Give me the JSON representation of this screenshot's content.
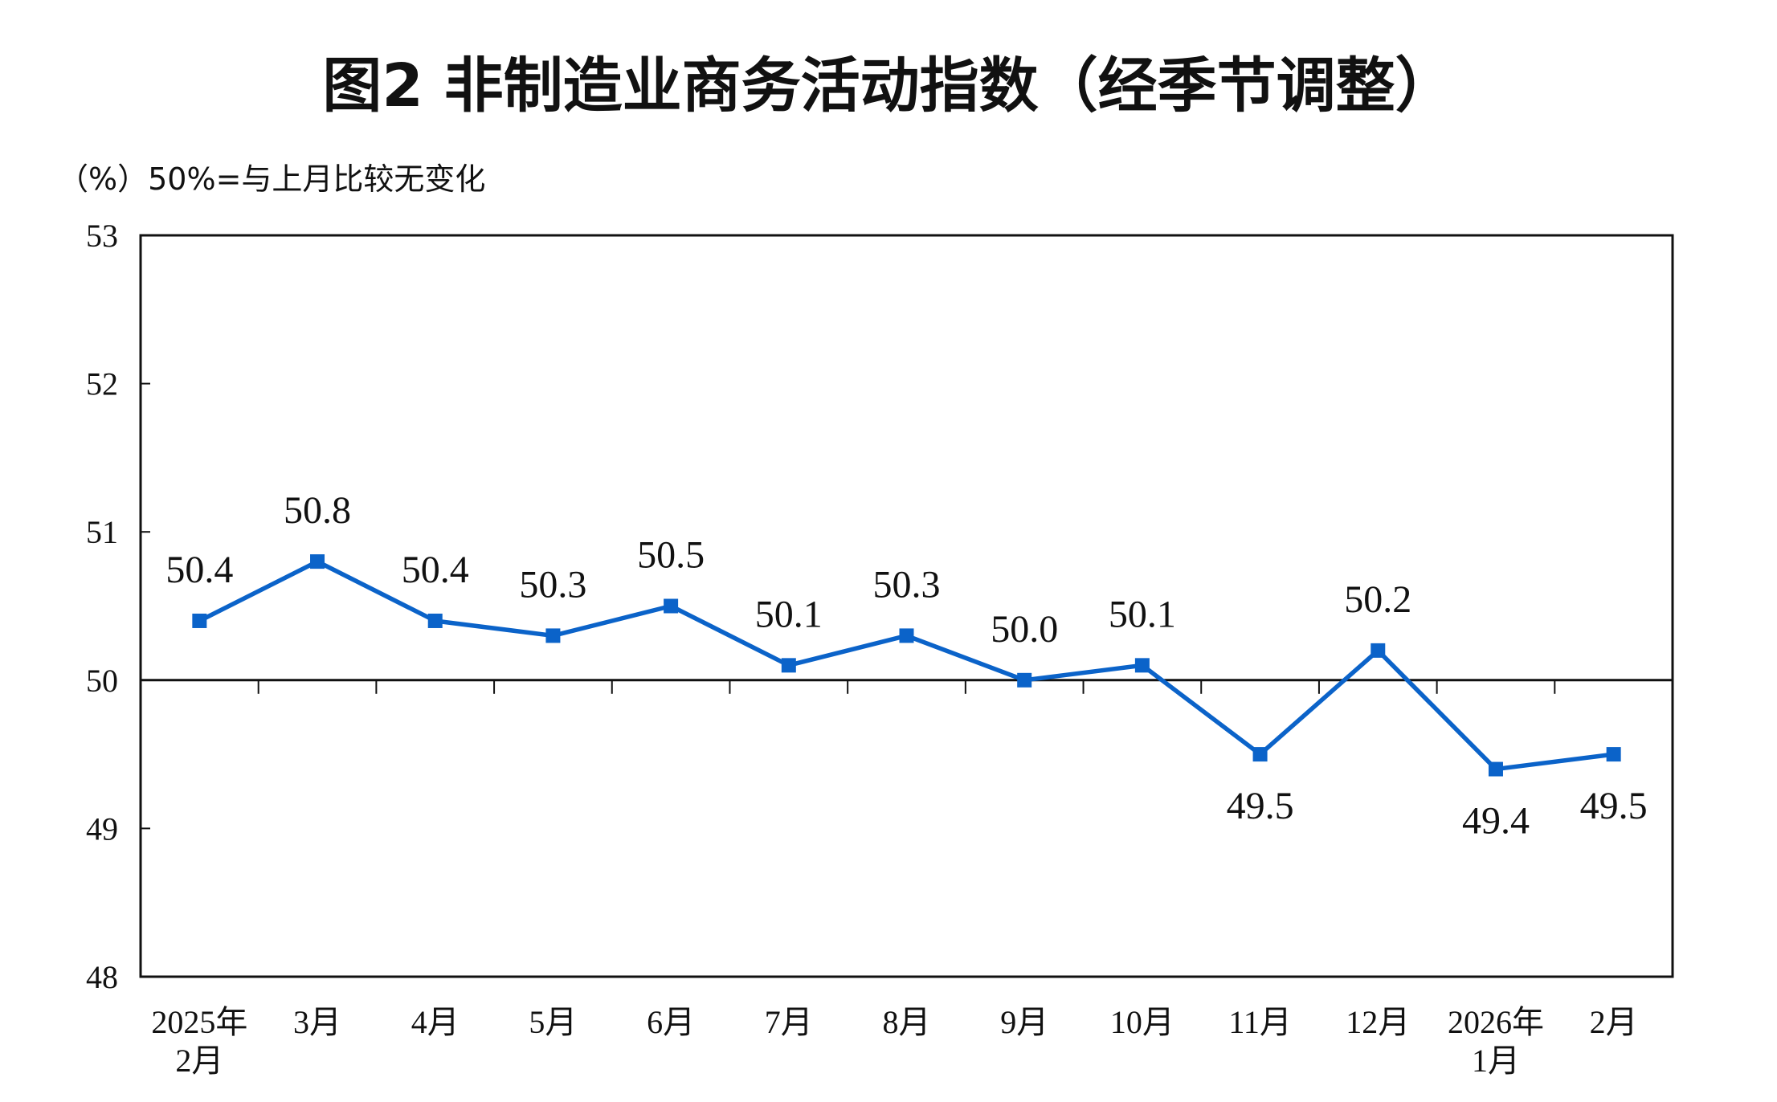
{
  "chart_data": {
    "type": "line",
    "title": "图2  非制造业商务活动指数（经季节调整）",
    "subtitle": "（%）50%=与上月比较无变化",
    "categories": [
      [
        "2025年",
        "2月"
      ],
      [
        "3月"
      ],
      [
        "4月"
      ],
      [
        "5月"
      ],
      [
        "6月"
      ],
      [
        "7月"
      ],
      [
        "8月"
      ],
      [
        "9月"
      ],
      [
        "10月"
      ],
      [
        "11月"
      ],
      [
        "12月"
      ],
      [
        "2026年",
        "1月"
      ],
      [
        "2月"
      ]
    ],
    "series": [
      {
        "name": "非制造业商务活动指数",
        "color": "#0b63c9",
        "values": [
          50.4,
          50.8,
          50.4,
          50.3,
          50.5,
          50.1,
          50.3,
          50.0,
          50.1,
          49.5,
          50.2,
          49.4,
          49.5
        ],
        "value_labels": [
          "50.4",
          "50.8",
          "50.4",
          "50.3",
          "50.5",
          "50.1",
          "50.3",
          "50.0",
          "50.1",
          "49.5",
          "50.2",
          "49.4",
          "49.5"
        ]
      }
    ],
    "ylim": [
      48,
      53
    ],
    "yticks": [
      48,
      49,
      50,
      51,
      52,
      53
    ],
    "reference_line": 50,
    "grid": false
  }
}
